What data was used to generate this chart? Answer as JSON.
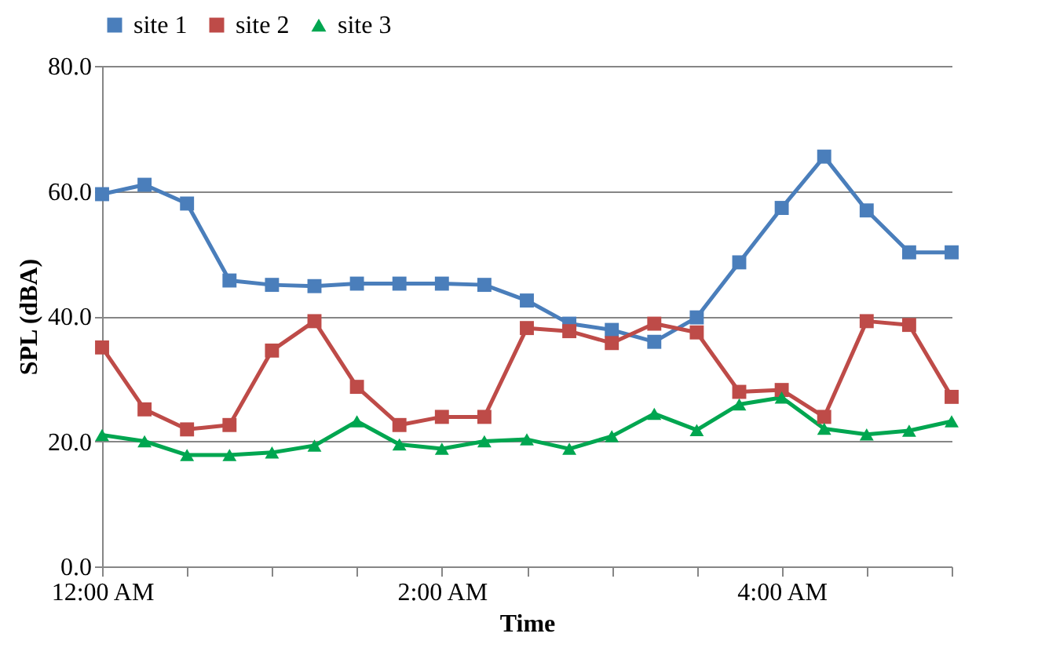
{
  "chart_data": {
    "type": "line",
    "xlabel": "Time",
    "ylabel": "SPL (dBA)",
    "x": [
      0,
      0.25,
      0.5,
      0.75,
      1,
      1.25,
      1.5,
      1.75,
      2,
      2.25,
      2.5,
      2.75,
      3,
      3.25,
      3.5,
      3.75,
      4,
      4.25,
      4.5,
      4.75,
      5
    ],
    "series": [
      {
        "name": "site 1",
        "color": "#4a7ebb",
        "marker": "square",
        "values": [
          59.5,
          61,
          58,
          45.7,
          45,
          44.8,
          45.2,
          45.2,
          45.2,
          45,
          42.5,
          38.8,
          37.8,
          35.9,
          39.8,
          48.6,
          57.3,
          65.5,
          56.9,
          50.2,
          50.2
        ]
      },
      {
        "name": "site 2",
        "color": "#be4b48",
        "marker": "square",
        "values": [
          35,
          25.1,
          21.9,
          22.6,
          34.5,
          39.2,
          28.7,
          22.6,
          23.9,
          23.9,
          38.1,
          37.6,
          35.7,
          38.8,
          37.4,
          27.9,
          28.2,
          23.9,
          39.2,
          38.6,
          27.1
        ]
      },
      {
        "name": "site 3",
        "color": "#00a650",
        "marker": "triangle",
        "values": [
          21,
          20,
          17.8,
          17.8,
          18.2,
          19.3,
          23.2,
          19.5,
          18.8,
          20,
          20.3,
          18.8,
          20.8,
          24.4,
          21.8,
          25.9,
          27,
          22,
          21.1,
          21.7,
          23.2
        ]
      }
    ],
    "xlim": [
      0,
      5
    ],
    "xticks": [
      {
        "value": 0,
        "label": "12:00 AM"
      },
      {
        "value": 0.5,
        "label": null
      },
      {
        "value": 1,
        "label": null
      },
      {
        "value": 1.5,
        "label": null
      },
      {
        "value": 2,
        "label": "2:00 AM"
      },
      {
        "value": 2.5,
        "label": null
      },
      {
        "value": 3,
        "label": null
      },
      {
        "value": 3.5,
        "label": null
      },
      {
        "value": 4,
        "label": "4:00 AM"
      },
      {
        "value": 4.5,
        "label": null
      },
      {
        "value": 5,
        "label": null
      }
    ],
    "ylim": [
      0,
      80
    ],
    "yticks": [
      {
        "value": 0,
        "label": "0.0"
      },
      {
        "value": 20,
        "label": "20.0"
      },
      {
        "value": 40,
        "label": "40.0"
      },
      {
        "value": 60,
        "label": "60.0"
      },
      {
        "value": 80,
        "label": "80.0"
      }
    ],
    "grid": "y",
    "legend": "top",
    "line_style": "solid"
  }
}
